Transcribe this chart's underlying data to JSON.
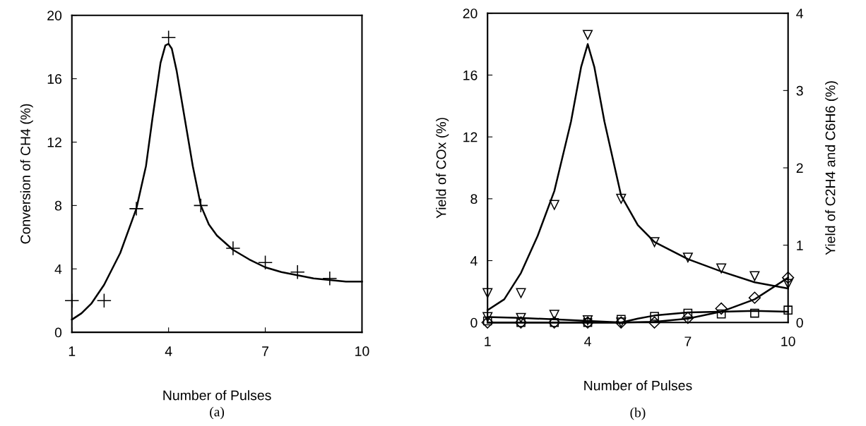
{
  "chart_data": [
    {
      "type": "scatter",
      "xlabel": "Number of Pulses",
      "ylabel": "Conversion of CH4 (%)",
      "annotations": [
        "(a)"
      ],
      "xlim": [
        1,
        10
      ],
      "xticks": [
        1,
        4,
        7,
        10
      ],
      "ylim": [
        0,
        20
      ],
      "yticks": [
        0,
        4,
        8,
        12,
        16,
        20
      ],
      "grid": false,
      "legend": false,
      "series": [
        {
          "marker": "cross",
          "color": "#000000",
          "x": [
            1,
            2,
            3,
            4,
            5,
            6,
            7,
            8,
            9
          ],
          "values": [
            2.0,
            2.0,
            7.8,
            18.6,
            8.0,
            5.3,
            4.4,
            3.8,
            3.4
          ]
        },
        {
          "type": "line",
          "marker": "none",
          "line_style": "solid",
          "color": "#000000",
          "x": [
            1,
            1.3,
            1.6,
            2,
            2.5,
            3,
            3.3,
            3.5,
            3.75,
            3.9,
            4,
            4.1,
            4.25,
            4.5,
            4.75,
            5,
            5.25,
            5.5,
            6,
            6.5,
            7,
            7.5,
            8,
            8.5,
            9,
            9.5,
            10
          ],
          "values": [
            0.8,
            1.2,
            1.8,
            3.0,
            5.0,
            7.8,
            10.5,
            13.5,
            17.0,
            18.1,
            18.2,
            17.9,
            16.5,
            13.5,
            10.5,
            8.0,
            6.8,
            6.1,
            5.2,
            4.6,
            4.1,
            3.8,
            3.6,
            3.4,
            3.3,
            3.2,
            3.2
          ]
        }
      ]
    },
    {
      "type": "scatter",
      "xlabel": "Number of Pulses",
      "ylabel": "Yield of COx (%)",
      "y2label": "Yield of C2H4 and C6H6 (%)",
      "annotations": [
        "(b)"
      ],
      "xlim": [
        1,
        10
      ],
      "xticks": [
        1,
        4,
        7,
        10
      ],
      "ylim": [
        0,
        20
      ],
      "yticks": [
        0,
        4,
        8,
        12,
        16,
        20
      ],
      "y2lim": [
        0,
        4
      ],
      "y2ticks": [
        0,
        1,
        2,
        3,
        4
      ],
      "grid": false,
      "legend": false,
      "series": [
        {
          "marker": "triangle",
          "color": "#000000",
          "x": [
            1,
            2,
            3,
            4,
            5,
            6,
            7,
            8,
            9,
            10
          ],
          "values": [
            1.9,
            1.9,
            7.6,
            18.6,
            8.0,
            5.2,
            4.2,
            3.5,
            3.0,
            2.5
          ]
        },
        {
          "type": "line",
          "marker": "none",
          "line_style": "solid",
          "color": "#000000",
          "x": [
            1,
            1.5,
            2,
            2.5,
            3,
            3.5,
            3.8,
            4,
            4.2,
            4.5,
            5,
            5.5,
            6,
            7,
            8,
            9,
            10
          ],
          "values": [
            0.8,
            1.5,
            3.2,
            5.6,
            8.5,
            13.0,
            16.5,
            18.0,
            16.5,
            13.0,
            8.2,
            6.3,
            5.2,
            4.1,
            3.3,
            2.6,
            2.2
          ]
        },
        {
          "marker": "triangle",
          "color": "#000000",
          "x": [
            1,
            2,
            3,
            4,
            5
          ],
          "values": [
            0.35,
            0.3,
            0.5,
            0.15,
            0.0
          ]
        },
        {
          "type": "line",
          "marker": "none",
          "line_style": "solid",
          "color": "#000000",
          "x": [
            1,
            2,
            3,
            4,
            5
          ],
          "values": [
            0.35,
            0.3,
            0.2,
            0.1,
            0.0
          ]
        },
        {
          "marker": "diamond",
          "axis": "y2",
          "color": "#000000",
          "x": [
            1,
            2,
            3,
            4,
            5,
            6,
            7,
            8,
            9,
            10
          ],
          "values": [
            0.0,
            0.0,
            0.0,
            0.0,
            0.0,
            0.0,
            0.06,
            0.18,
            0.32,
            0.58
          ]
        },
        {
          "type": "line",
          "marker": "none",
          "line_style": "solid",
          "axis": "y2",
          "color": "#000000",
          "x": [
            1,
            5,
            6,
            7,
            8,
            9,
            10
          ],
          "values": [
            0.0,
            0.0,
            0.01,
            0.05,
            0.14,
            0.3,
            0.58
          ]
        },
        {
          "marker": "square",
          "axis": "y2",
          "color": "#000000",
          "x": [
            1,
            2,
            3,
            4,
            5,
            6,
            7,
            8,
            9,
            10
          ],
          "values": [
            0.02,
            0.0,
            0.0,
            0.0,
            0.04,
            0.08,
            0.12,
            0.11,
            0.12,
            0.16
          ]
        },
        {
          "type": "line",
          "marker": "none",
          "line_style": "solid",
          "axis": "y2",
          "color": "#000000",
          "x": [
            1,
            5,
            5.5,
            6,
            7,
            8,
            9,
            10
          ],
          "values": [
            0.0,
            0.0,
            0.05,
            0.09,
            0.13,
            0.14,
            0.15,
            0.14
          ]
        }
      ]
    }
  ]
}
